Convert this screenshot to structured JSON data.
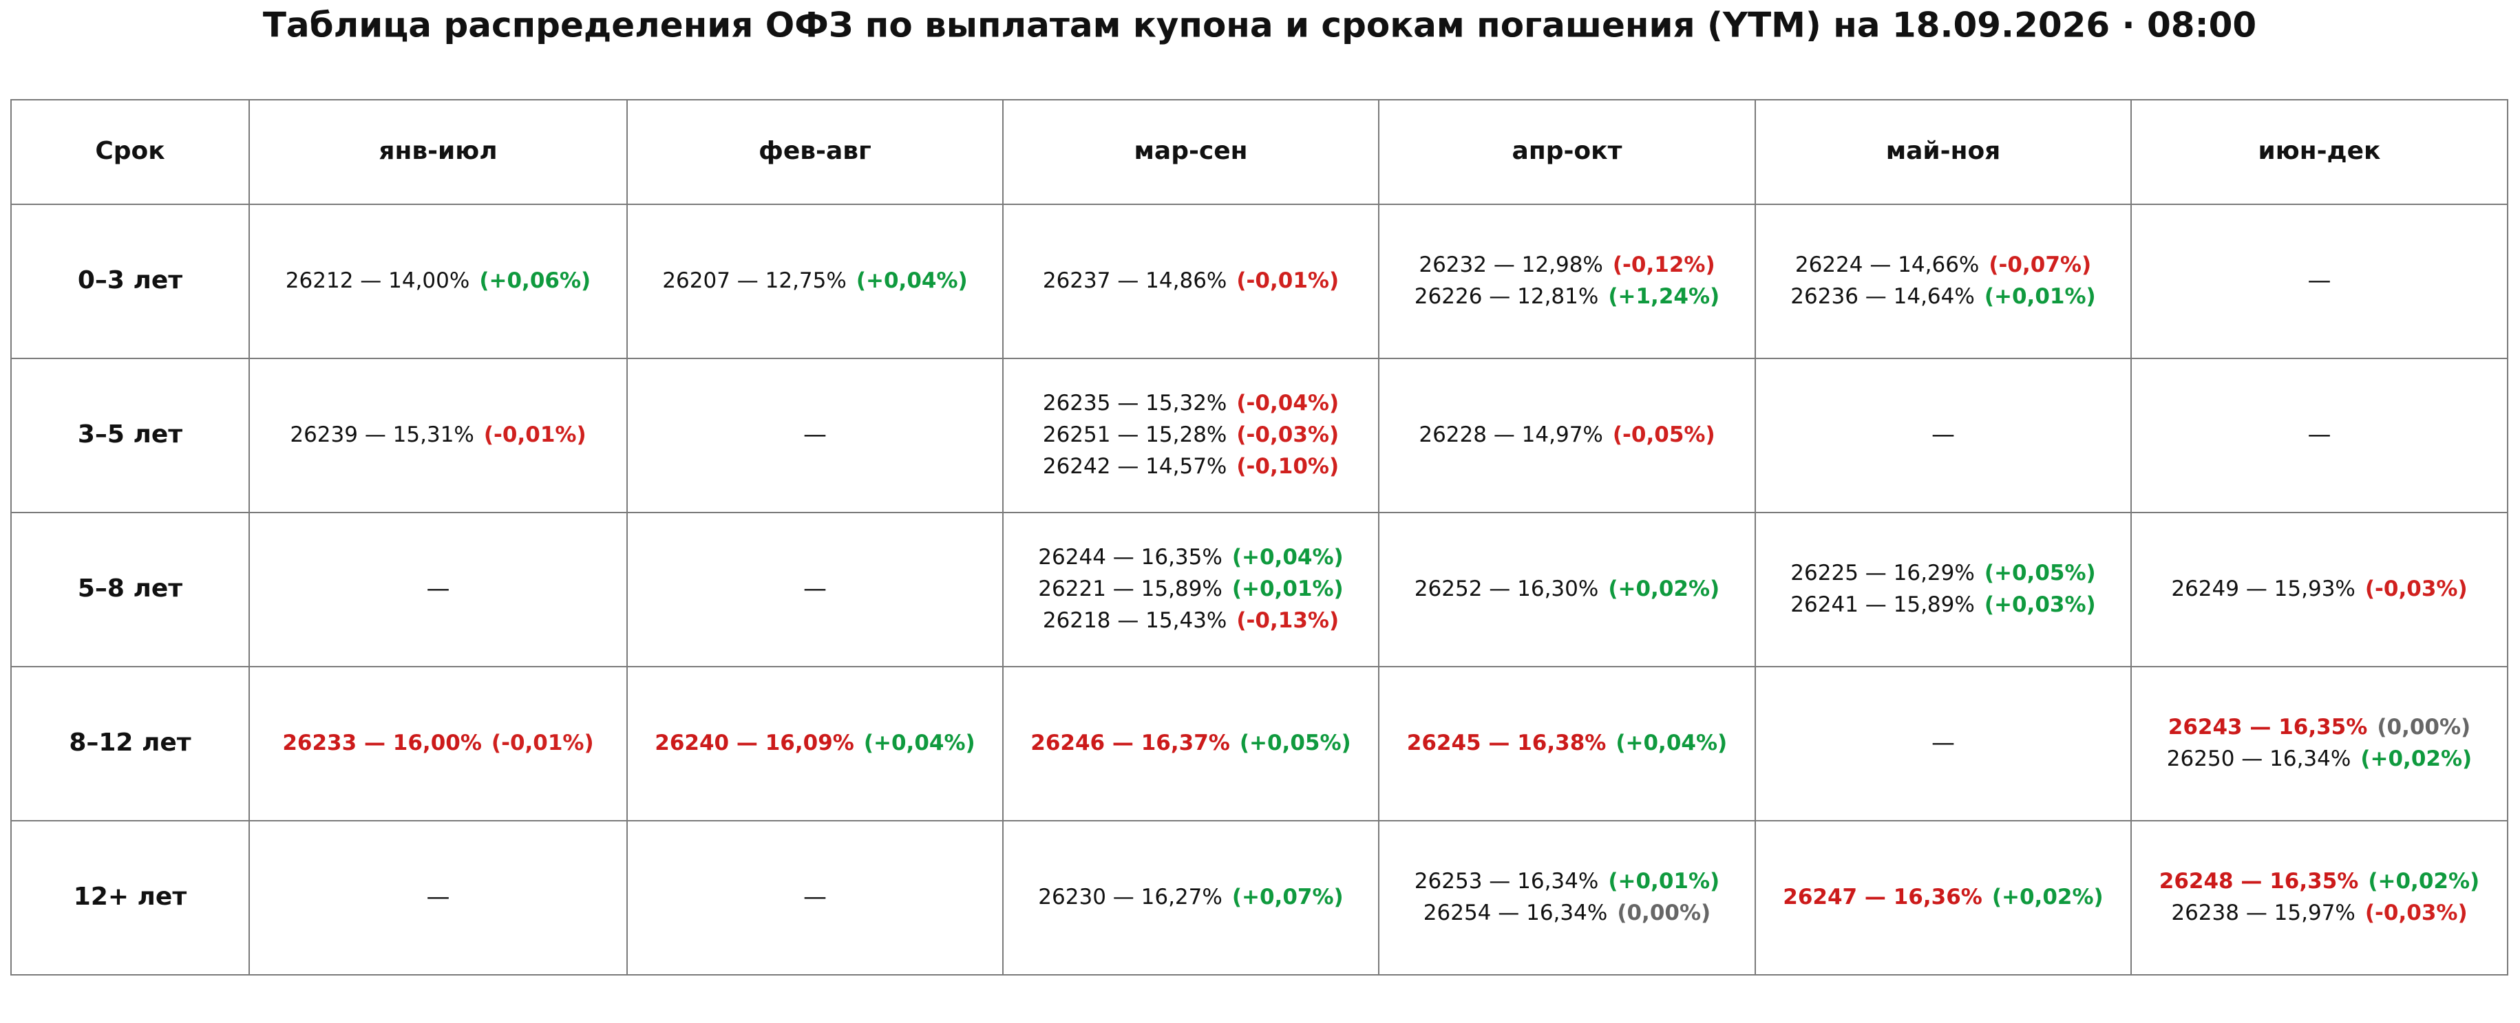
{
  "title": "Таблица распределения ОФЗ по выплатам купона и срокам погашения (YTM) на 18.09.2026 · 08:00",
  "highlight_color": "#cc1a1a",
  "table": {
    "header": [
      "Срок",
      "янв-июл",
      "фев-авг",
      "мар-сен",
      "апр-окт",
      "май-ноя",
      "июн-дек"
    ],
    "rows": [
      {
        "label": "0–3 лет",
        "cells": [
          [
            {
              "text": "26212 — 14,00%",
              "change": "(+0,06%)",
              "color": "#0f9a3e"
            }
          ],
          [
            {
              "text": "26207 — 12,75%",
              "change": "(+0,04%)",
              "color": "#0f9a3e"
            }
          ],
          [
            {
              "text": "26237 — 14,86%",
              "change": "(-0,01%)",
              "color": "#d0201e"
            }
          ],
          [
            {
              "text": "26232 — 12,98%",
              "change": "(-0,12%)",
              "color": "#d0201e"
            },
            {
              "text": "26226 — 12,81%",
              "change": "(+1,24%)",
              "color": "#0f9a3e"
            }
          ],
          [
            {
              "text": "26224 — 14,66%",
              "change": "(-0,07%)",
              "color": "#d0201e"
            },
            {
              "text": "26236 — 14,64%",
              "change": "(+0,01%)",
              "color": "#0f9a3e"
            }
          ],
          "—"
        ]
      },
      {
        "label": "3–5 лет",
        "cells": [
          [
            {
              "text": "26239 — 15,31%",
              "change": "(-0,01%)",
              "color": "#d0201e"
            }
          ],
          "—",
          [
            {
              "text": "26235 — 15,32%",
              "change": "(-0,04%)",
              "color": "#d0201e"
            },
            {
              "text": "26251 — 15,28%",
              "change": "(-0,03%)",
              "color": "#d0201e"
            },
            {
              "text": "26242 — 14,57%",
              "change": "(-0,10%)",
              "color": "#d0201e"
            }
          ],
          [
            {
              "text": "26228 — 14,97%",
              "change": "(-0,05%)",
              "color": "#d0201e"
            }
          ],
          "—",
          "—"
        ]
      },
      {
        "label": "5–8 лет",
        "cells": [
          "—",
          "—",
          [
            {
              "text": "26244 — 16,35%",
              "change": "(+0,04%)",
              "color": "#0f9a3e"
            },
            {
              "text": "26221 — 15,89%",
              "change": "(+0,01%)",
              "color": "#0f9a3e"
            },
            {
              "text": "26218 — 15,43%",
              "change": "(-0,13%)",
              "color": "#d0201e"
            }
          ],
          [
            {
              "text": "26252 — 16,30%",
              "change": "(+0,02%)",
              "color": "#0f9a3e"
            }
          ],
          [
            {
              "text": "26225 — 16,29%",
              "change": "(+0,05%)",
              "color": "#0f9a3e"
            },
            {
              "text": "26241 — 15,89%",
              "change": "(+0,03%)",
              "color": "#0f9a3e"
            }
          ],
          [
            {
              "text": "26249 — 15,93%",
              "change": "(-0,03%)",
              "color": "#d0201e"
            }
          ]
        ]
      },
      {
        "label": "8–12 лет",
        "cells": [
          [
            {
              "text": "26233 — 16,00%",
              "change": "(-0,01%)",
              "color": "#d0201e",
              "highlight": true
            }
          ],
          [
            {
              "text": "26240 — 16,09%",
              "change": "(+0,04%)",
              "color": "#0f9a3e",
              "highlight": true
            }
          ],
          [
            {
              "text": "26246 — 16,37%",
              "change": "(+0,05%)",
              "color": "#0f9a3e",
              "highlight": true
            }
          ],
          [
            {
              "text": "26245 — 16,38%",
              "change": "(+0,04%)",
              "color": "#0f9a3e",
              "highlight": true
            }
          ],
          "—",
          [
            {
              "text": "26243 — 16,35%",
              "change": "(0,00%)",
              "color": "#666666",
              "highlight": true
            },
            {
              "text": "26250 — 16,34%",
              "change": "(+0,02%)",
              "color": "#0f9a3e"
            }
          ]
        ]
      },
      {
        "label": "12+ лет",
        "cells": [
          "—",
          "—",
          [
            {
              "text": "26230 — 16,27%",
              "change": "(+0,07%)",
              "color": "#0f9a3e"
            }
          ],
          [
            {
              "text": "26253 — 16,34%",
              "change": "(+0,01%)",
              "color": "#0f9a3e"
            },
            {
              "text": "26254 — 16,34%",
              "change": "(0,00%)",
              "color": "#666666"
            }
          ],
          [
            {
              "text": "26247 — 16,36%",
              "change": "(+0,02%)",
              "color": "#0f9a3e",
              "highlight": true
            }
          ],
          [
            {
              "text": "26248 — 16,35%",
              "change": "(+0,02%)",
              "color": "#0f9a3e",
              "highlight": true
            },
            {
              "text": "26238 — 15,97%",
              "change": "(-0,03%)",
              "color": "#d0201e"
            }
          ]
        ]
      }
    ]
  }
}
